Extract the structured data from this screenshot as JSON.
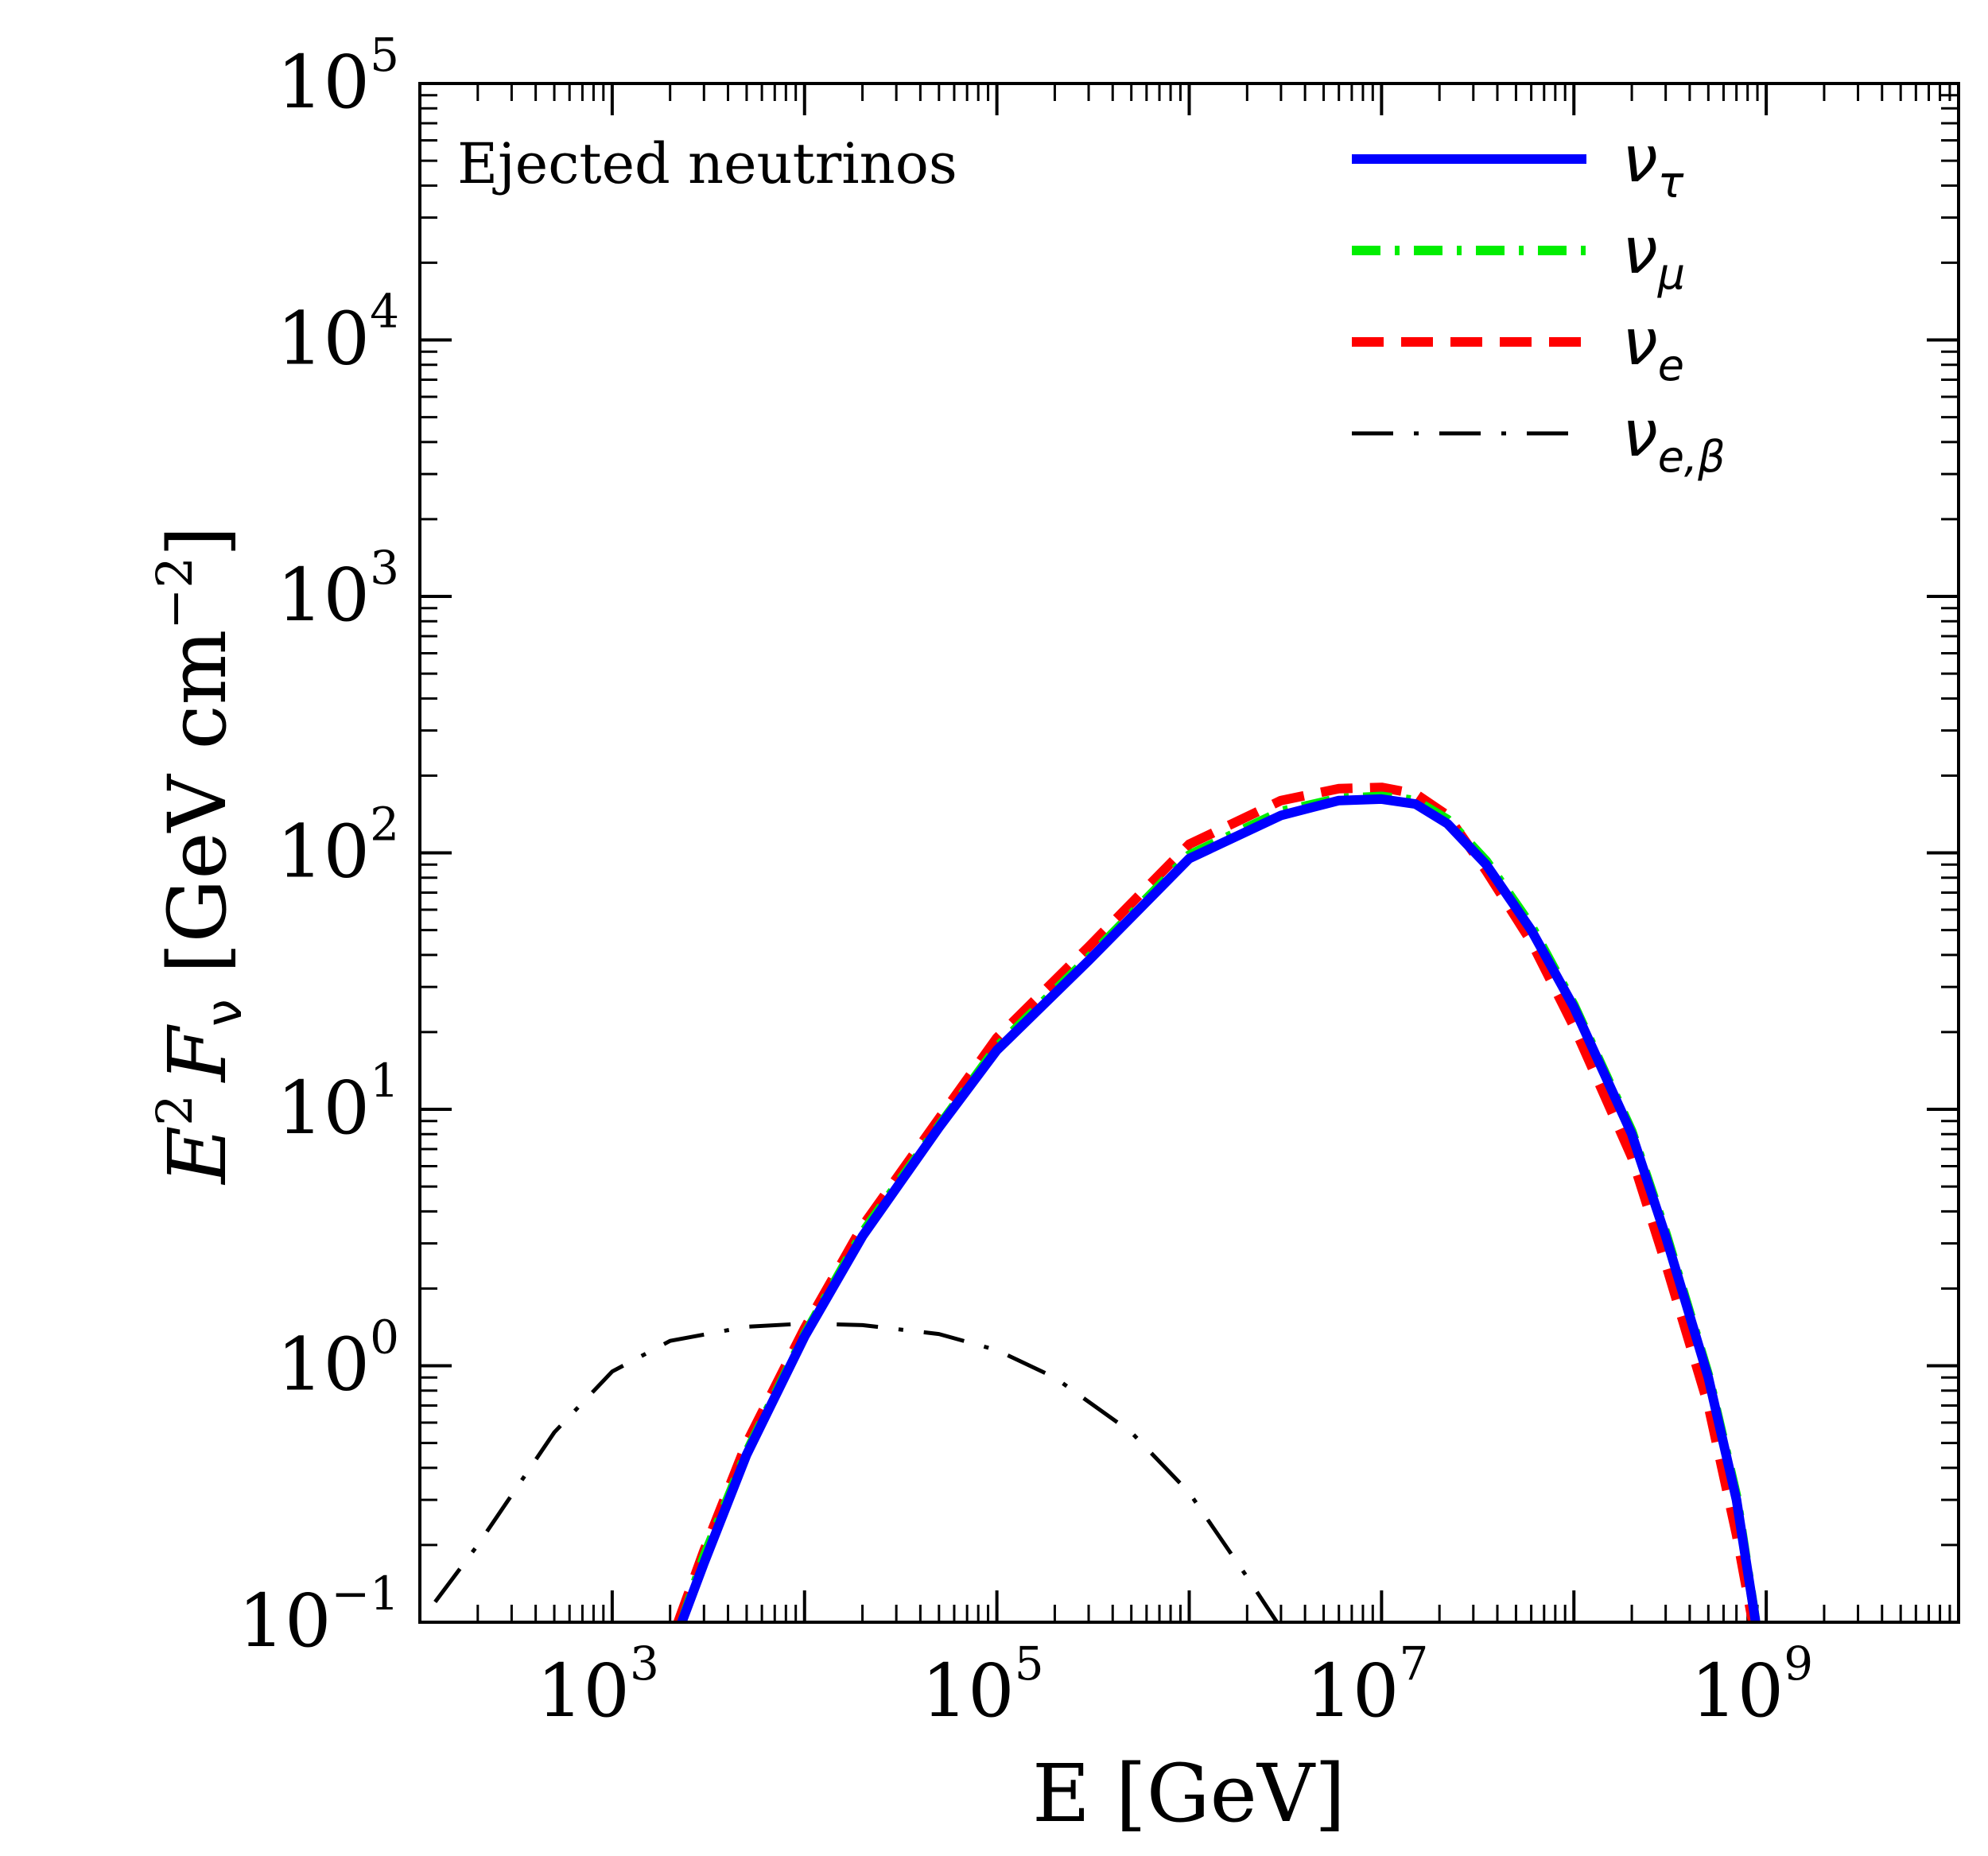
{
  "chart_data": {
    "type": "line",
    "annotation": "Ejected neutrinos",
    "xlabel": "E [GeV]",
    "ylabel": {
      "base": "E",
      "base_sup": "2",
      "flux": "F",
      "flux_sub": "ν",
      "units": " [GeV cm",
      "units_sup": "−2",
      "close": "]"
    },
    "xscale": "log",
    "yscale": "log",
    "xlim": [
      100,
      10000000000
    ],
    "ylim": [
      0.1,
      100000
    ],
    "x_tick_labels": [
      {
        "value": 1000,
        "base": "10",
        "exp": "3"
      },
      {
        "value": 100000,
        "base": "10",
        "exp": "5"
      },
      {
        "value": 10000000,
        "base": "10",
        "exp": "7"
      },
      {
        "value": 1000000000,
        "base": "10",
        "exp": "9"
      }
    ],
    "y_tick_labels": [
      {
        "value": 0.1,
        "base": "10",
        "exp": "−1"
      },
      {
        "value": 1,
        "base": "10",
        "exp": "0"
      },
      {
        "value": 10,
        "base": "10",
        "exp": "1"
      },
      {
        "value": 100,
        "base": "10",
        "exp": "2"
      },
      {
        "value": 1000,
        "base": "10",
        "exp": "3"
      },
      {
        "value": 10000,
        "base": "10",
        "exp": "4"
      },
      {
        "value": 100000,
        "base": "10",
        "exp": "5"
      }
    ],
    "legend_position": "top-right",
    "series": [
      {
        "name": "ν_τ",
        "symbol": "ν",
        "subscript": "τ",
        "color": "#0000ff",
        "style": "solid",
        "x": [
          2300,
          3000,
          5000,
          10000,
          20000,
          50000,
          100000,
          300000,
          1000000,
          3000000,
          6000000,
          10000000,
          15000000,
          22000000,
          35000000,
          60000000,
          100000000,
          200000000,
          300000000,
          500000000,
          700000000,
          900000000
        ],
        "y": [
          0.1,
          0.17,
          0.45,
          1.3,
          3.2,
          8.5,
          17,
          38,
          95,
          140,
          160,
          162,
          155,
          130,
          90,
          50,
          25,
          8,
          3.2,
          0.9,
          0.3,
          0.09
        ]
      },
      {
        "name": "ν_μ",
        "symbol": "ν",
        "subscript": "μ",
        "color": "#00ee00",
        "style": "dashdot",
        "x": [
          2300,
          3000,
          5000,
          10000,
          20000,
          50000,
          100000,
          300000,
          1000000,
          3000000,
          6000000,
          10000000,
          15000000,
          22000000,
          35000000,
          60000000,
          100000000,
          200000000,
          300000000,
          500000000,
          700000000,
          900000000
        ],
        "y": [
          0.1,
          0.18,
          0.46,
          1.32,
          3.3,
          8.6,
          17.5,
          39,
          98,
          145,
          163,
          166,
          160,
          135,
          93,
          52,
          25.5,
          8.2,
          3.3,
          0.92,
          0.31,
          0.09
        ]
      },
      {
        "name": "ν_e",
        "symbol": "ν",
        "subscript": "e",
        "color": "#ff0000",
        "style": "dashed",
        "x": [
          2200,
          3000,
          5000,
          10000,
          20000,
          50000,
          100000,
          300000,
          1000000,
          3000000,
          6000000,
          10000000,
          15000000,
          22000000,
          35000000,
          60000000,
          100000000,
          200000000,
          300000000,
          500000000,
          700000000,
          850000000
        ],
        "y": [
          0.1,
          0.19,
          0.5,
          1.4,
          3.5,
          9.2,
          19,
          43,
          108,
          160,
          178,
          180,
          170,
          140,
          85,
          45,
          21,
          6.5,
          2.5,
          0.7,
          0.22,
          0.1
        ]
      },
      {
        "name": "ν_e,β",
        "symbol": "ν",
        "subscript": "e,β",
        "color": "#000000",
        "style": "dashdot-thin",
        "x": [
          120,
          200,
          500,
          1000,
          2000,
          5000,
          10000,
          20000,
          50000,
          100000,
          200000,
          500000,
          1000000,
          2000000,
          3300000
        ],
        "y": [
          0.12,
          0.2,
          0.55,
          0.95,
          1.25,
          1.42,
          1.46,
          1.44,
          1.33,
          1.15,
          0.9,
          0.55,
          0.32,
          0.15,
          0.085
        ]
      }
    ]
  }
}
